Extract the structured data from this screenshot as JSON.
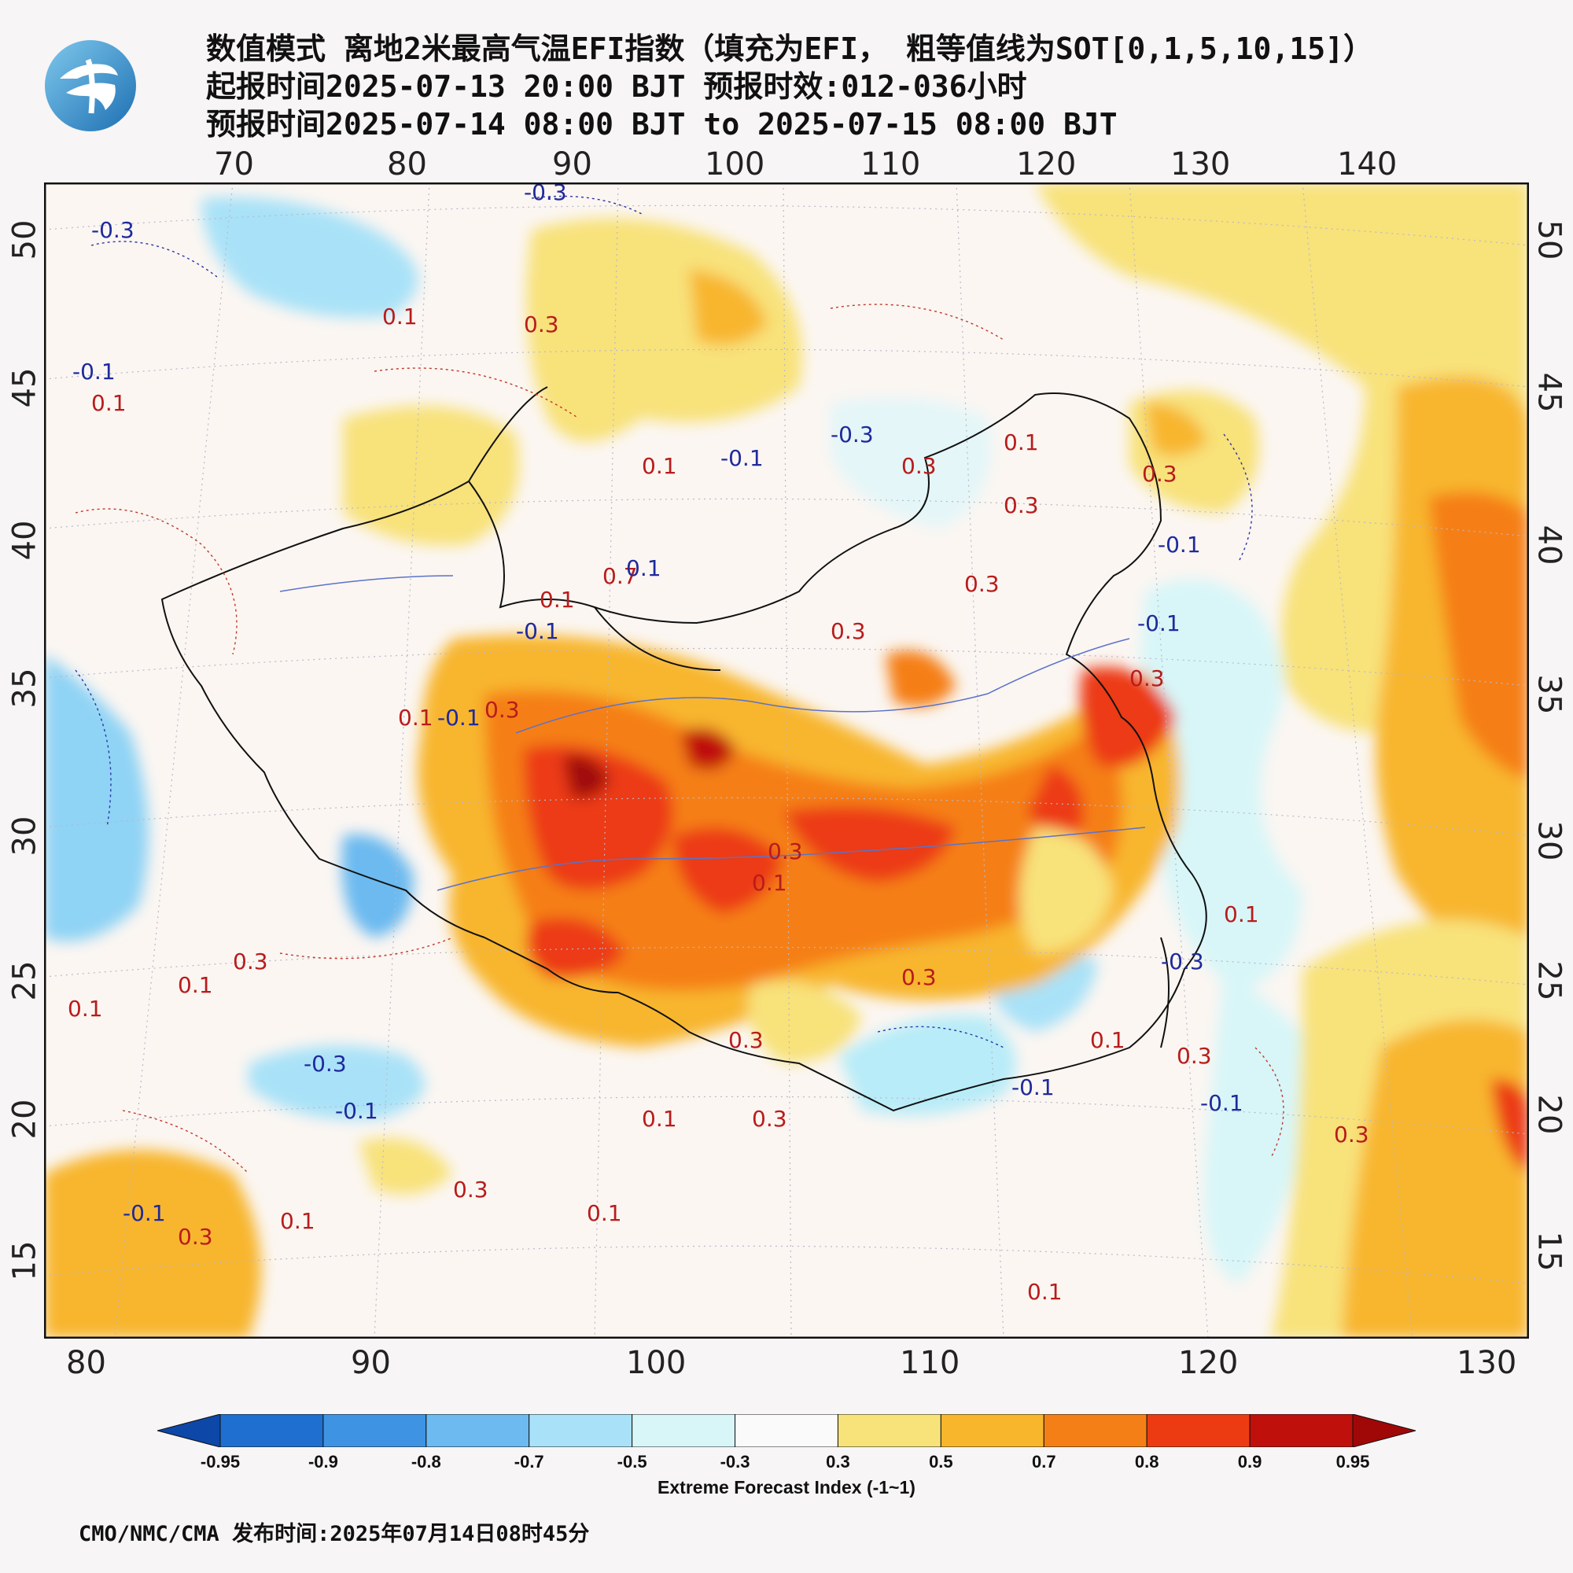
{
  "header": {
    "line1": "数值模式 离地2米最高气温EFI指数（填充为EFI， 粗等值线为SOT[0,1,5,10,15]）",
    "line2": "起报时间2025-07-13 20:00 BJT 预报时效:012-036小时",
    "line3": "预报时间2025-07-14 08:00 BJT to 2025-07-15 08:00 BJT"
  },
  "map": {
    "top_lon_ticks": [
      "70",
      "80",
      "90",
      "100",
      "110",
      "120",
      "130",
      "140"
    ],
    "bottom_lon_ticks": [
      "80",
      "90",
      "100",
      "110",
      "120",
      "130"
    ],
    "left_lat_ticks": [
      "50",
      "45",
      "40",
      "35",
      "30",
      "25",
      "20",
      "15"
    ],
    "right_lat_ticks": [
      "50",
      "45",
      "40",
      "35",
      "30",
      "25",
      "20",
      "15"
    ],
    "contour_labels": [
      {
        "text": "-0.3",
        "color": "blue"
      },
      {
        "text": "-0.3",
        "color": "blue"
      },
      {
        "text": "0.1",
        "color": "red"
      },
      {
        "text": "0.3",
        "color": "red"
      },
      {
        "text": "-0.1",
        "color": "blue"
      },
      {
        "text": "0.1",
        "color": "red"
      },
      {
        "text": "-0.1",
        "color": "blue"
      },
      {
        "text": "-0.3",
        "color": "blue"
      },
      {
        "text": "0.1",
        "color": "red"
      },
      {
        "text": "0.3",
        "color": "red"
      },
      {
        "text": "0.3",
        "color": "red"
      },
      {
        "text": "-0.1",
        "color": "blue"
      },
      {
        "text": "0.1",
        "color": "red"
      },
      {
        "text": "0.7",
        "color": "red"
      },
      {
        "text": "0.1",
        "color": "blue"
      },
      {
        "text": "0.1",
        "color": "red"
      },
      {
        "text": "-0.1",
        "color": "blue"
      },
      {
        "text": "0.1",
        "color": "red"
      },
      {
        "text": "0.3",
        "color": "red"
      },
      {
        "text": "-0.1",
        "color": "blue"
      },
      {
        "text": "0.3",
        "color": "red"
      },
      {
        "text": "0.3",
        "color": "red"
      },
      {
        "text": "0.3",
        "color": "red"
      },
      {
        "text": "0.3",
        "color": "red"
      },
      {
        "text": "0.1",
        "color": "red"
      },
      {
        "text": "0.1",
        "color": "red"
      },
      {
        "text": "-0.3",
        "color": "blue"
      },
      {
        "text": "-0.1",
        "color": "blue"
      },
      {
        "text": "0.3",
        "color": "red"
      },
      {
        "text": "0.1",
        "color": "red"
      },
      {
        "text": "0.3",
        "color": "red"
      },
      {
        "text": "-0.3",
        "color": "blue"
      },
      {
        "text": "-0.1",
        "color": "blue"
      },
      {
        "text": "0.1",
        "color": "red"
      },
      {
        "text": "0.1",
        "color": "red"
      },
      {
        "text": "0.3",
        "color": "red"
      },
      {
        "text": "0.3",
        "color": "red"
      },
      {
        "text": "0.1",
        "color": "red"
      },
      {
        "text": "0.3",
        "color": "red"
      },
      {
        "text": "0.1",
        "color": "red"
      },
      {
        "text": "0.3",
        "color": "red"
      },
      {
        "text": "-0.1",
        "color": "blue"
      },
      {
        "text": "0.3",
        "color": "red"
      },
      {
        "text": "0.1",
        "color": "red"
      },
      {
        "text": "0.3",
        "color": "red"
      },
      {
        "text": "-0.1",
        "color": "blue"
      },
      {
        "text": "-0.1",
        "color": "blue"
      },
      {
        "text": "0.3",
        "color": "red"
      },
      {
        "text": "0.1",
        "color": "red"
      }
    ]
  },
  "colorbar": {
    "labels": [
      "-0.95",
      "-0.9",
      "-0.8",
      "-0.7",
      "-0.5",
      "-0.3",
      "0.3",
      "0.5",
      "0.7",
      "0.8",
      "0.9",
      "0.95"
    ],
    "colors": [
      "#0d47a8",
      "#1e6fd0",
      "#3f93e3",
      "#6cbaf0",
      "#a9e2f8",
      "#d8f6f8",
      "#fafafa",
      "#f8e27a",
      "#f8b62d",
      "#f57f17",
      "#ec3b13",
      "#c0100c",
      "#a00707"
    ],
    "title": "Extreme Forecast Index (-1~1)"
  },
  "footer": {
    "text": "CMO/NMC/CMA 发布时间:2025年07月14日08时45分"
  }
}
